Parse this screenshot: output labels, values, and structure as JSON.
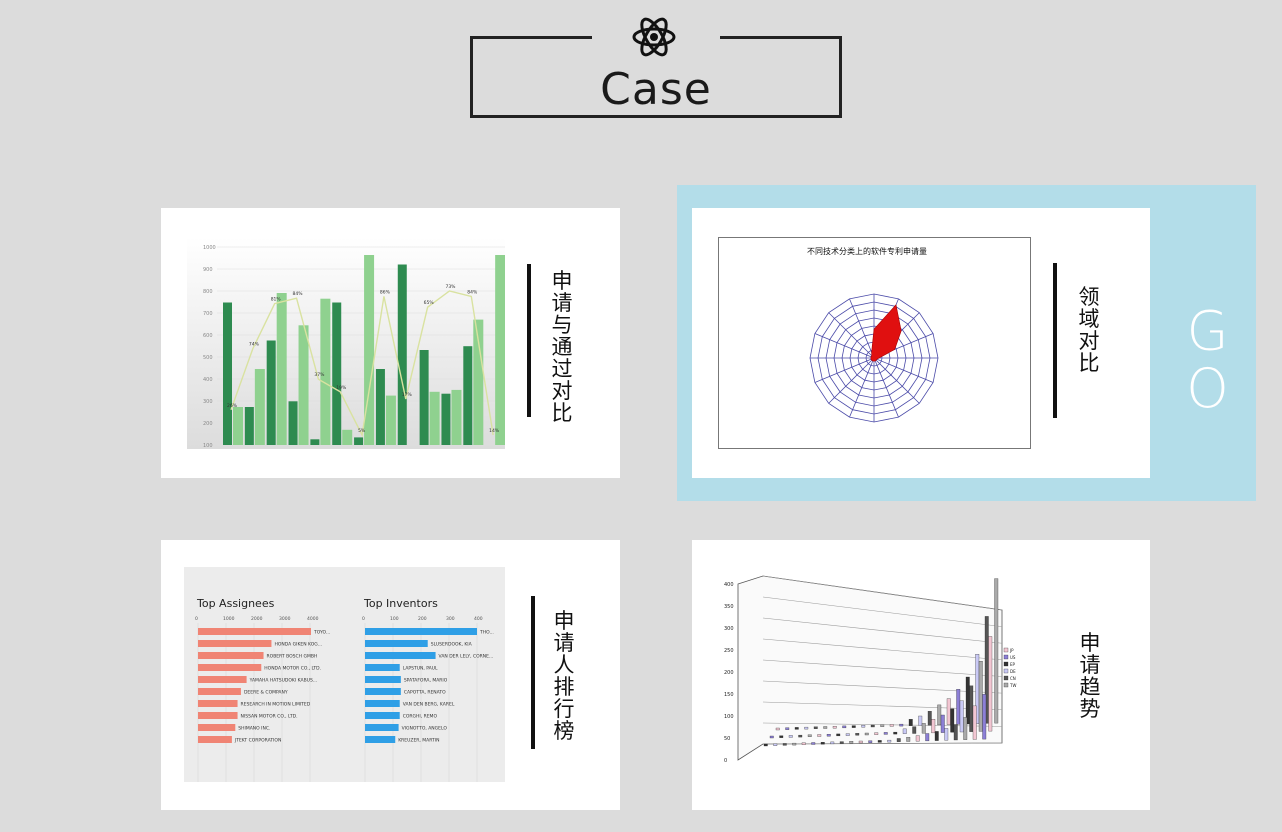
{
  "header": {
    "title": "Case"
  },
  "cards": [
    {
      "label": "申请与通过对比"
    },
    {
      "label": "领域对比",
      "action": "GO"
    },
    {
      "label": "申请人排行榜"
    },
    {
      "label": "申请趋势"
    }
  ],
  "thumb_line": {
    "y_ticks": [
      "1000",
      "900",
      "800",
      "700",
      "600",
      "500",
      "400",
      "300",
      "200",
      "100"
    ],
    "pct": [
      "26%",
      "74%",
      "81%",
      "84%",
      "37%",
      "19%",
      "5%",
      "86%",
      "17%",
      "65%",
      "73%",
      "84%",
      "14%"
    ]
  },
  "thumb_radar": {
    "title": "不同技术分类上的软件专利申请量"
  },
  "thumb_rank": {
    "assignees_title": "Top Assignees",
    "inventors_title": "Top Inventors",
    "assignee_ticks": [
      "0",
      "1000",
      "2000",
      "3000",
      "4000"
    ],
    "inventor_ticks": [
      "0",
      "100",
      "200",
      "300",
      "400"
    ],
    "assignees": [
      "TOYO...",
      "HONDA GIKEN KOG...",
      "ROBERT BOSCH GMBH",
      "HONDA MOTOR CO., LTD.",
      "YAMAHA HATSUDOKI KABUS...",
      "DEERE & COMPANY",
      "RESEARCH IN MOTION LIMITED",
      "NISSAN MOTOR CO., LTD.",
      "SHIMANO INC.",
      "JTEKT CORPORATION"
    ],
    "inventors": [
      "THO...",
      "SLUSERDOOK, KIA",
      "VAN DER LELY, CORNE...",
      "LAPSTUN, PAUL",
      "SPATAFORA, MARIO",
      "CAPOTTA, RENATO",
      "VAN DEN BERG, KAREL",
      "CORGHI, REMO",
      "VIGNOTTO, ANGELO",
      "KREUZER, MARTIN"
    ]
  },
  "thumb_trend": {
    "y_ticks": [
      "400",
      "350",
      "300",
      "250",
      "200",
      "150",
      "100",
      "50",
      "0"
    ],
    "legend": [
      "JP",
      "US",
      "EP",
      "DE",
      "CN",
      "TW"
    ]
  },
  "colors": {
    "highlight": "#b3dde9",
    "green_dark": "#2e8b50",
    "green_light": "#8fd18f",
    "salmon": "#f08474",
    "blue": "#2f9fe6",
    "radar_red": "#e01010"
  }
}
